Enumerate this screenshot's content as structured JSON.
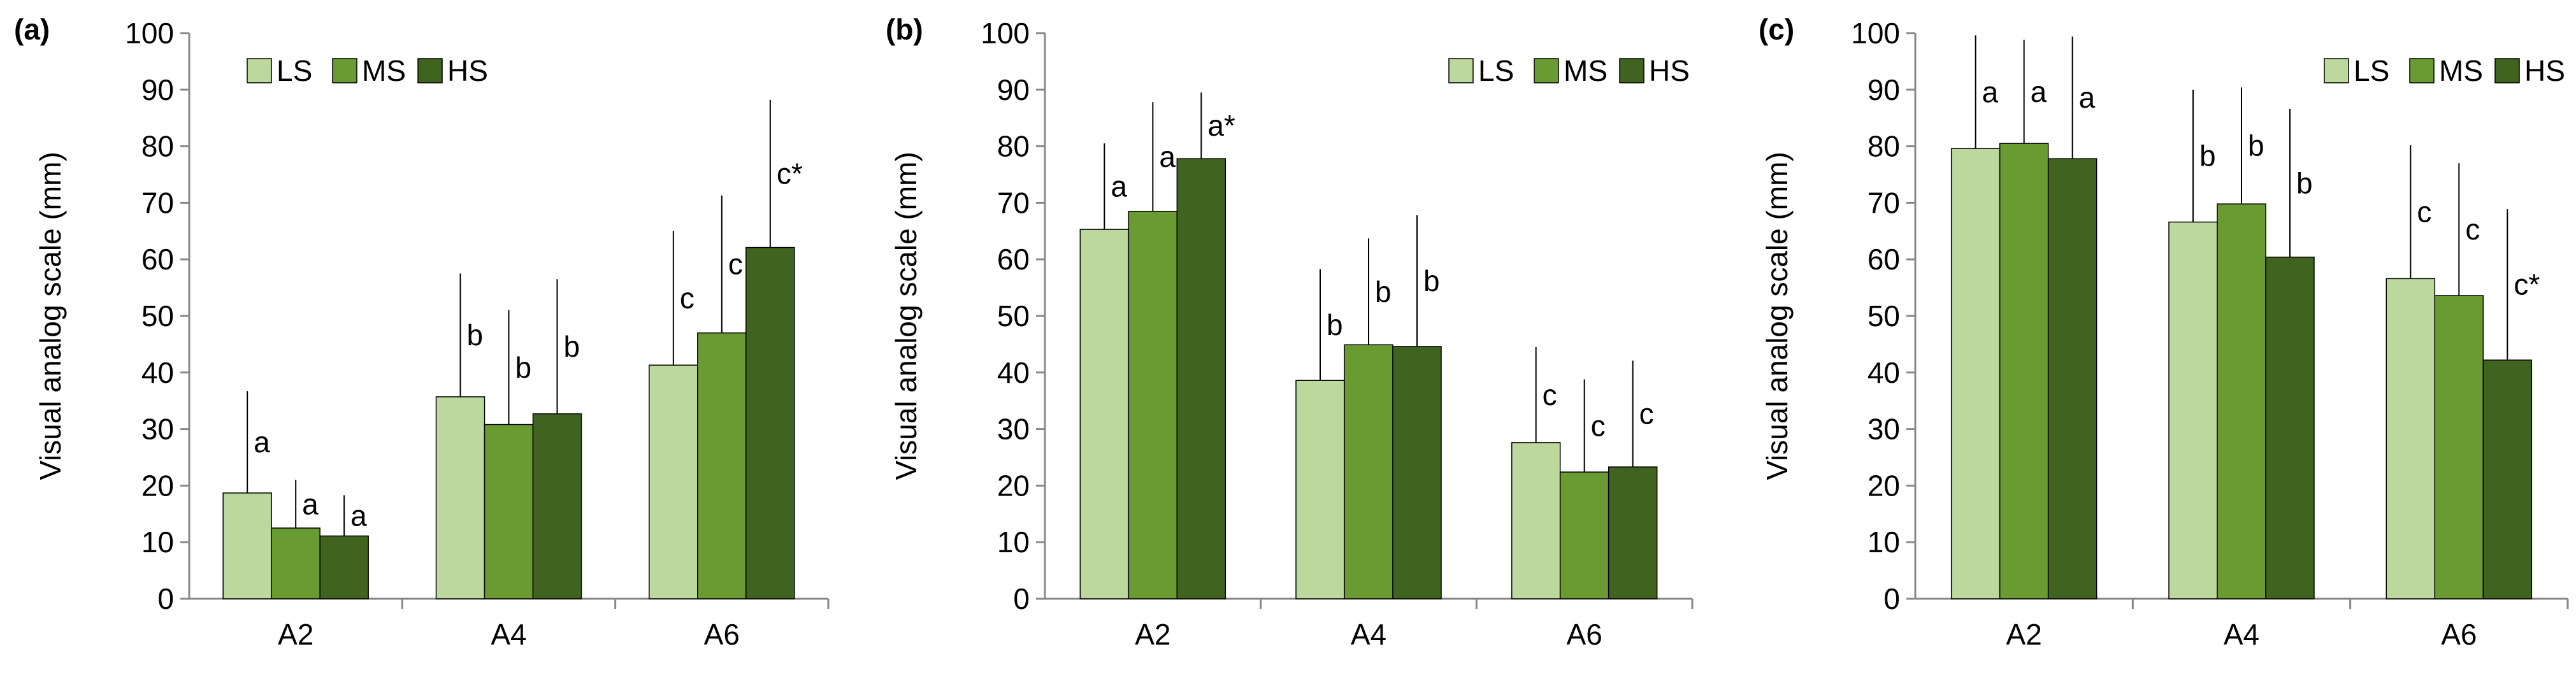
{
  "colors": {
    "LS": "#bcd89c",
    "MS": "#6a9a32",
    "HS": "#416320",
    "axis": "#888888",
    "error_bar": "#000000"
  },
  "chart_data": [
    {
      "type": "bar",
      "panel_label": "(a)",
      "ylabel": "Visual analog scale (mm)",
      "ylim": [
        0,
        100
      ],
      "yticks": [
        0,
        10,
        20,
        30,
        40,
        50,
        60,
        70,
        80,
        90,
        100
      ],
      "categories": [
        "A2",
        "A4",
        "A6"
      ],
      "legend_position": "top-left",
      "series": [
        {
          "name": "LS",
          "values": [
            18.7,
            35.7,
            41.3
          ],
          "error_plus": [
            18.0,
            21.8,
            23.7
          ],
          "annotations": [
            "a",
            "b",
            "c"
          ]
        },
        {
          "name": "MS",
          "values": [
            12.5,
            30.8,
            47.0
          ],
          "error_plus": [
            8.5,
            20.2,
            24.3
          ],
          "annotations": [
            "a",
            "b",
            "c"
          ]
        },
        {
          "name": "HS",
          "values": [
            11.1,
            32.7,
            62.1
          ],
          "error_plus": [
            7.2,
            23.8,
            26.1
          ],
          "annotations": [
            "a",
            "b",
            "c*"
          ]
        }
      ]
    },
    {
      "type": "bar",
      "panel_label": "(b)",
      "ylabel": "Visual analog scale (mm)",
      "ylim": [
        0,
        100
      ],
      "yticks": [
        0,
        10,
        20,
        30,
        40,
        50,
        60,
        70,
        80,
        90,
        100
      ],
      "categories": [
        "A2",
        "A4",
        "A6"
      ],
      "legend_position": "top-right",
      "series": [
        {
          "name": "LS",
          "values": [
            65.3,
            38.6,
            27.6
          ],
          "error_plus": [
            15.2,
            19.7,
            16.9
          ],
          "annotations": [
            "a",
            "b",
            "c"
          ]
        },
        {
          "name": "MS",
          "values": [
            68.5,
            44.9,
            22.4
          ],
          "error_plus": [
            19.3,
            18.8,
            16.4
          ],
          "annotations": [
            "a",
            "b",
            "c"
          ]
        },
        {
          "name": "HS",
          "values": [
            77.8,
            44.6,
            23.3
          ],
          "error_plus": [
            11.7,
            23.2,
            18.8
          ],
          "annotations": [
            "a*",
            "b",
            "c"
          ]
        }
      ]
    },
    {
      "type": "bar",
      "panel_label": "(c)",
      "ylabel": "Visual analog scale (mm)",
      "ylim": [
        0,
        100
      ],
      "yticks": [
        0,
        10,
        20,
        30,
        40,
        50,
        60,
        70,
        80,
        90,
        100
      ],
      "categories": [
        "A2",
        "A4",
        "A6"
      ],
      "legend_position": "top-right",
      "series": [
        {
          "name": "LS",
          "values": [
            79.6,
            66.6,
            56.6
          ],
          "error_plus": [
            20.0,
            23.4,
            23.6
          ],
          "annotations": [
            "a",
            "b",
            "c"
          ]
        },
        {
          "name": "MS",
          "values": [
            80.5,
            69.8,
            53.6
          ],
          "error_plus": [
            18.3,
            20.6,
            23.4
          ],
          "annotations": [
            "a",
            "b",
            "c"
          ]
        },
        {
          "name": "HS",
          "values": [
            77.8,
            60.4,
            42.2
          ],
          "error_plus": [
            21.6,
            26.2,
            26.7
          ],
          "annotations": [
            "a",
            "b",
            "c*"
          ]
        }
      ]
    }
  ]
}
